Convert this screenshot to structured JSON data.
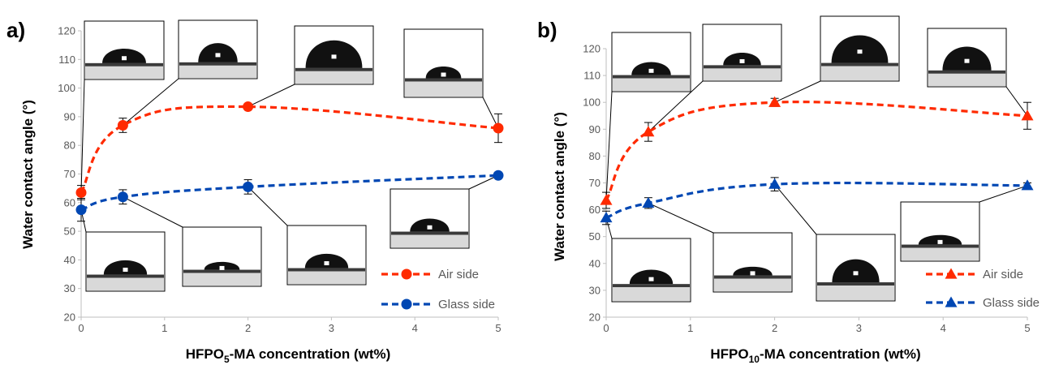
{
  "colors": {
    "air": "#ff2a00",
    "glass": "#0047b3",
    "axis": "#bfbfbf",
    "tick_text": "#595959"
  },
  "legend": {
    "air_label": "Air side",
    "glass_label": "Glass side"
  },
  "chart_data": [
    {
      "panel_label": "a)",
      "type": "line",
      "marker": "circle",
      "ylabel": "Water contact angle (°)",
      "xlabel_prefix": "HFPO",
      "xlabel_subscript": "5",
      "xlabel_suffix": "-MA concentration (wt%)",
      "xlim": [
        0,
        5
      ],
      "ylim": [
        20,
        120
      ],
      "xticks": [
        0,
        1,
        2,
        3,
        4,
        5
      ],
      "yticks": [
        20,
        30,
        40,
        50,
        60,
        70,
        80,
        90,
        100,
        110,
        120
      ],
      "grid": false,
      "legend_position": "bottom-right",
      "series": [
        {
          "name": "Air side",
          "x": [
            0,
            0.5,
            2,
            5
          ],
          "y": [
            63.5,
            87,
            93.5,
            86
          ],
          "err": [
            2.5,
            2.5,
            1,
            5
          ]
        },
        {
          "name": "Glass side",
          "x": [
            0,
            0.5,
            2,
            5
          ],
          "y": [
            57.5,
            62,
            65.5,
            69.5
          ],
          "err": [
            4,
            2.5,
            2.5,
            1
          ]
        }
      ],
      "insets": [
        {
          "drop_shape": "cap",
          "drop_size": 0.55,
          "points_to_series": 0,
          "points_to_index": 0
        },
        {
          "drop_shape": "dome",
          "drop_size": 0.5,
          "points_to_series": 0,
          "points_to_index": 1
        },
        {
          "drop_shape": "dome",
          "drop_size": 0.72,
          "points_to_series": 0,
          "points_to_index": 2
        },
        {
          "drop_shape": "cap",
          "drop_size": 0.45,
          "points_to_series": 0,
          "points_to_index": 3
        },
        {
          "drop_shape": "cap",
          "drop_size": 0.55,
          "points_to_series": 1,
          "points_to_index": 0
        },
        {
          "drop_shape": "flat",
          "drop_size": 0.45,
          "points_to_series": 1,
          "points_to_index": 1
        },
        {
          "drop_shape": "cap",
          "drop_size": 0.55,
          "points_to_series": 1,
          "points_to_index": 2
        },
        {
          "drop_shape": "cap",
          "drop_size": 0.5,
          "points_to_series": 1,
          "points_to_index": 3
        }
      ]
    },
    {
      "panel_label": "b)",
      "type": "line",
      "marker": "triangle",
      "ylabel": "Water contact angle (°)",
      "xlabel_prefix": "HFPO",
      "xlabel_subscript": "10",
      "xlabel_suffix": "-MA concentration (wt%)",
      "xlim": [
        0,
        5
      ],
      "ylim": [
        20,
        120
      ],
      "xticks": [
        0,
        1,
        2,
        3,
        4,
        5
      ],
      "yticks": [
        20,
        30,
        40,
        50,
        60,
        70,
        80,
        90,
        100,
        110,
        120
      ],
      "grid": false,
      "legend_position": "bottom-right",
      "series": [
        {
          "name": "Air side",
          "x": [
            0,
            0.5,
            2,
            5
          ],
          "y": [
            63.5,
            89,
            100,
            95
          ],
          "err": [
            3,
            3.5,
            1.5,
            5
          ]
        },
        {
          "name": "Glass side",
          "x": [
            0,
            0.5,
            2,
            5
          ],
          "y": [
            57,
            62.5,
            69.5,
            69
          ],
          "err": [
            2.5,
            2,
            2.5,
            1
          ]
        }
      ],
      "insets": [
        {
          "drop_shape": "cap",
          "drop_size": 0.5,
          "points_to_series": 0,
          "points_to_index": 0
        },
        {
          "drop_shape": "cap",
          "drop_size": 0.48,
          "points_to_series": 0,
          "points_to_index": 1
        },
        {
          "drop_shape": "dome",
          "drop_size": 0.72,
          "points_to_series": 0,
          "points_to_index": 2
        },
        {
          "drop_shape": "dome",
          "drop_size": 0.62,
          "points_to_series": 0,
          "points_to_index": 3
        },
        {
          "drop_shape": "cap",
          "drop_size": 0.55,
          "points_to_series": 1,
          "points_to_index": 0
        },
        {
          "drop_shape": "flat",
          "drop_size": 0.5,
          "points_to_series": 1,
          "points_to_index": 1
        },
        {
          "drop_shape": "dome",
          "drop_size": 0.6,
          "points_to_series": 1,
          "points_to_index": 2
        },
        {
          "drop_shape": "flat",
          "drop_size": 0.55,
          "points_to_series": 1,
          "points_to_index": 3
        }
      ]
    }
  ]
}
